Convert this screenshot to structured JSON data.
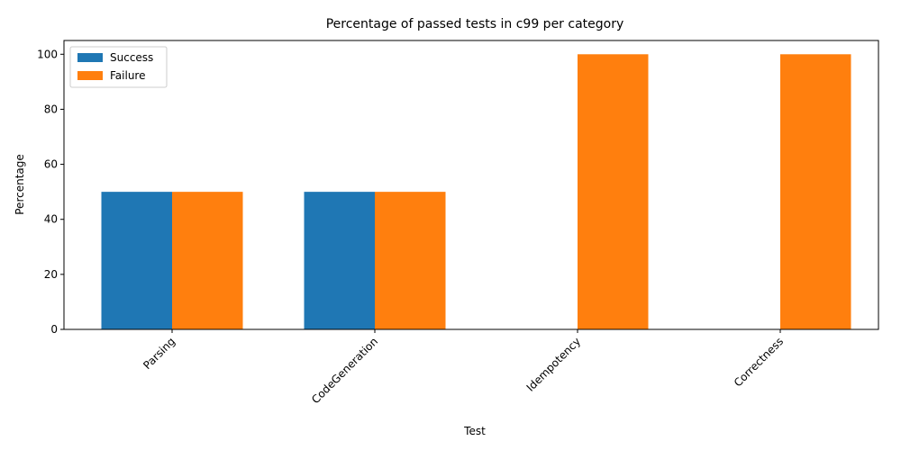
{
  "chart_data": {
    "type": "bar",
    "title": "Percentage of passed tests in c99 per category",
    "xlabel": "Test",
    "ylabel": "Percentage",
    "categories": [
      "Parsing",
      "CodeGeneration",
      "Idempotency",
      "Correctness"
    ],
    "series": [
      {
        "name": "Success",
        "values": [
          50,
          50,
          0,
          0
        ],
        "color": "#1f77b4"
      },
      {
        "name": "Failure",
        "values": [
          50,
          50,
          100,
          100
        ],
        "color": "#ff7f0e"
      }
    ],
    "ylim": [
      0,
      105
    ],
    "yticks": [
      0,
      20,
      40,
      60,
      80,
      100
    ],
    "grid": false,
    "legend_position": "top-left"
  }
}
